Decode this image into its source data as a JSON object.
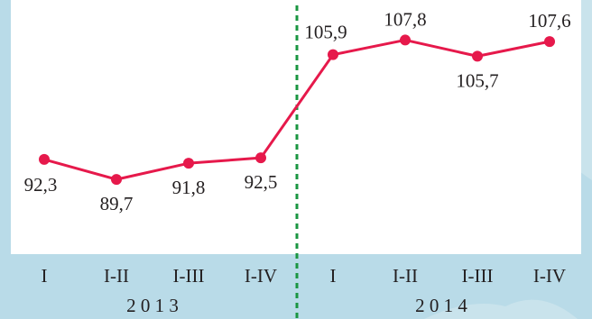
{
  "chart_data": {
    "type": "line",
    "categories": [
      "I",
      "I-II",
      "I-III",
      "I-IV",
      "I",
      "I-II",
      "I-III",
      "I-IV"
    ],
    "year_groups": [
      {
        "label": "2 0 1 3",
        "start": 0,
        "end": 3
      },
      {
        "label": "2 0 1 4",
        "start": 4,
        "end": 7
      }
    ],
    "series": [
      {
        "values": [
          92.3,
          89.7,
          91.8,
          92.5,
          105.9,
          107.8,
          105.7,
          107.6
        ],
        "value_labels": [
          "92,3",
          "89,7",
          "91,8",
          "92,5",
          "105,9",
          "107,8",
          "105,7",
          "107,6"
        ],
        "color": "#e6194b"
      }
    ],
    "ylim": [
      80,
      113
    ],
    "grid": false,
    "divider_after_index": 3,
    "title": "",
    "xlabel": "",
    "ylabel": "",
    "colors": {
      "plot_background": "#ffffff",
      "page_background": "#b9dbe8",
      "line": "#e6194b",
      "marker": "#e6194b",
      "divider": "#1a9641",
      "text": "#231f20"
    }
  }
}
